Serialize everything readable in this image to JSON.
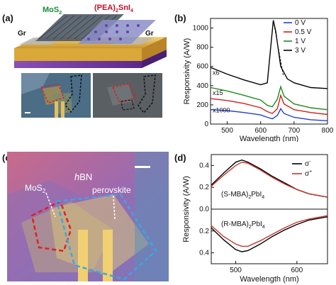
{
  "panels": {
    "a": {
      "label": "(a)",
      "mos2": "MoS",
      "mos2_sub": "2",
      "pea": "(PEA)",
      "pea_sub1": "2",
      "pea_mid": "SnI",
      "pea_sub2": "4",
      "gr_left": "Gr",
      "gr_right": "Gr"
    },
    "b": {
      "label": "(b)"
    },
    "c": {
      "label": "(c)",
      "hbn_italic": "h",
      "hbn_rest": "BN",
      "mos2": "MoS",
      "mos2_sub": "2",
      "perovskite": "perovskite"
    },
    "d": {
      "label": "(d)"
    }
  },
  "colors": {
    "s0V": "#1f3fd6",
    "s05V": "#d11f1f",
    "s1V": "#1f8a1f",
    "s3V": "#000000",
    "sigma_minus": "#000000",
    "sigma_plus": "#c0392b",
    "mos2_label": "#1a8a3a",
    "pea_label": "#c0102a",
    "outline_red": "#e02020",
    "outline_blue": "#3aa7e0"
  },
  "chart_data": [
    {
      "type": "line",
      "panel": "b",
      "xlabel": "Wavelength (nm)",
      "ylabel": "Responsivity (A/W)",
      "xlim": [
        450,
        800
      ],
      "ylim": [
        0,
        1100
      ],
      "xticks": [
        "500",
        "600",
        "700",
        "800"
      ],
      "yticks": [
        "0",
        "200",
        "400",
        "600",
        "800",
        "1000"
      ],
      "annotations": [
        "x6",
        "x15",
        "x1000"
      ],
      "legend_position": "top-right",
      "series": [
        {
          "name": "0 V",
          "x": [
            450,
            500,
            550,
            600,
            620,
            635,
            650,
            660,
            670,
            700,
            750,
            800
          ],
          "y": [
            150,
            140,
            120,
            95,
            70,
            55,
            90,
            160,
            110,
            70,
            45,
            35
          ]
        },
        {
          "name": "0.5 V",
          "x": [
            450,
            500,
            550,
            600,
            620,
            635,
            650,
            660,
            670,
            700,
            750,
            800
          ],
          "y": [
            265,
            245,
            215,
            170,
            130,
            110,
            160,
            300,
            210,
            150,
            120,
            100
          ]
        },
        {
          "name": "1 V",
          "x": [
            450,
            500,
            550,
            600,
            620,
            635,
            650,
            660,
            670,
            700,
            750,
            800
          ],
          "y": [
            380,
            345,
            300,
            250,
            195,
            180,
            260,
            390,
            290,
            210,
            170,
            150
          ]
        },
        {
          "name": "3 V",
          "x": [
            450,
            500,
            550,
            600,
            620,
            630,
            638,
            645,
            660,
            680,
            700,
            750,
            800
          ],
          "y": [
            590,
            520,
            460,
            410,
            430,
            800,
            1080,
            970,
            600,
            470,
            430,
            380,
            370
          ]
        }
      ]
    },
    {
      "type": "line",
      "panel": "d",
      "xlabel": "Wavelength (nm)",
      "ylabel": "Responsivity (A/W)",
      "xlim": [
        460,
        650
      ],
      "xticks": [
        "500",
        "600"
      ],
      "yticks_top": [
        "0.0",
        "0.2",
        "0.4"
      ],
      "yticks_bottom": [
        "0.2",
        "0.4"
      ],
      "annotations": [
        "(S-MBA)",
        "2",
        "PbI",
        "4",
        "(R-MBA)",
        "2",
        "PbI",
        "4"
      ],
      "legend_position": "top-right",
      "legend": [
        {
          "symbol": "σ",
          "sup": "-"
        },
        {
          "symbol": "σ",
          "sup": "+"
        }
      ],
      "subplots": [
        {
          "name": "(S-MBA)2PbI4",
          "series": [
            {
              "name": "σ-",
              "x": [
                460,
                480,
                500,
                510,
                520,
                540,
                560,
                580,
                600,
                620,
                650
              ],
              "y": [
                0.22,
                0.33,
                0.43,
                0.45,
                0.43,
                0.37,
                0.3,
                0.24,
                0.18,
                0.14,
                0.11
              ]
            },
            {
              "name": "σ+",
              "x": [
                460,
                480,
                500,
                510,
                520,
                540,
                560,
                580,
                600,
                620,
                650
              ],
              "y": [
                0.21,
                0.31,
                0.4,
                0.43,
                0.42,
                0.36,
                0.29,
                0.23,
                0.18,
                0.14,
                0.11
              ]
            }
          ]
        },
        {
          "name": "(R-MBA)2PbI4",
          "series": [
            {
              "name": "σ-",
              "x": [
                460,
                480,
                500,
                510,
                520,
                540,
                560,
                580,
                600,
                620,
                650
              ],
              "y": [
                0.17,
                0.28,
                0.37,
                0.39,
                0.38,
                0.32,
                0.25,
                0.19,
                0.14,
                0.1,
                0.07
              ]
            },
            {
              "name": "σ+",
              "x": [
                460,
                480,
                500,
                510,
                520,
                540,
                560,
                580,
                600,
                620,
                650
              ],
              "y": [
                0.15,
                0.25,
                0.32,
                0.34,
                0.34,
                0.29,
                0.23,
                0.17,
                0.12,
                0.09,
                0.06
              ]
            }
          ]
        }
      ]
    }
  ]
}
